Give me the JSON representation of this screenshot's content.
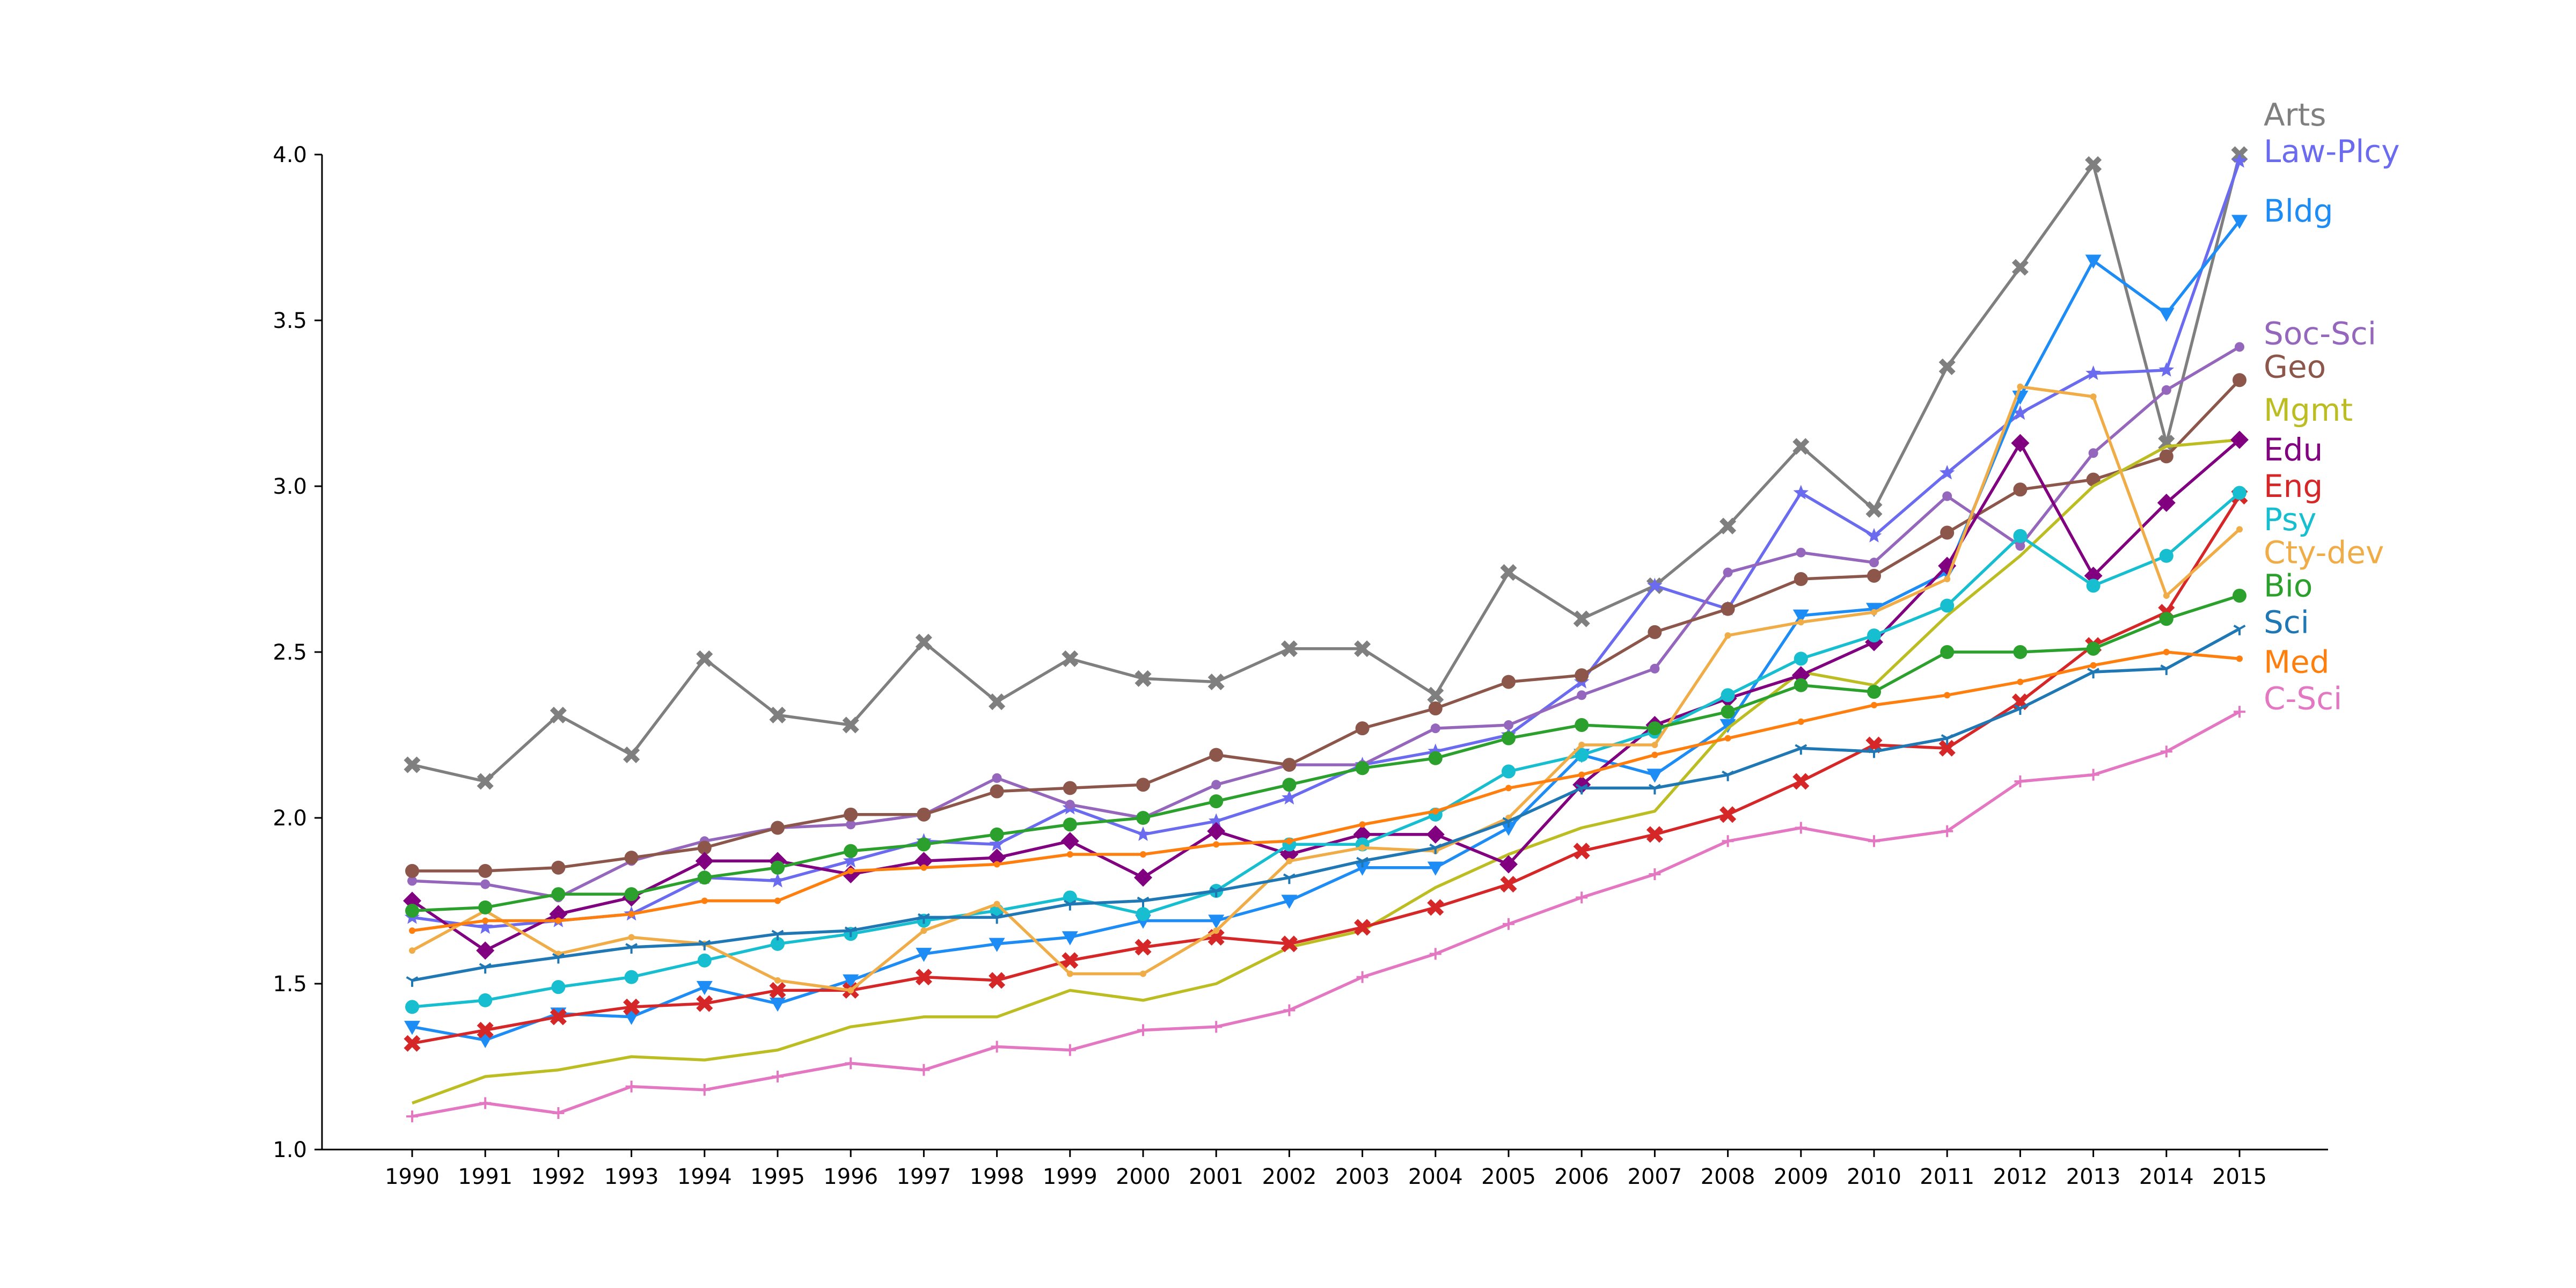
{
  "chart_data": {
    "type": "line",
    "title": "",
    "xlabel": "",
    "ylabel": "",
    "grid": false,
    "legend": "inline labels at line ends (right)",
    "ylim": [
      1.0,
      4.0
    ],
    "yticks": [
      "1.0",
      "1.5",
      "2.0",
      "2.5",
      "3.0",
      "3.5",
      "4.0"
    ],
    "x": [
      "1990",
      "1991",
      "1992",
      "1993",
      "1994",
      "1995",
      "1996",
      "1997",
      "1998",
      "1999",
      "2000",
      "2001",
      "2002",
      "2003",
      "2004",
      "2005",
      "2006",
      "2007",
      "2008",
      "2009",
      "2010",
      "2011",
      "2012",
      "2013",
      "2014",
      "2015"
    ],
    "series": [
      {
        "name": "Arts",
        "color": "#7f7f7f",
        "marker": "x",
        "values": [
          2.16,
          2.11,
          2.31,
          2.19,
          2.48,
          2.31,
          2.28,
          2.53,
          2.35,
          2.48,
          2.42,
          2.41,
          2.51,
          2.51,
          2.37,
          2.74,
          2.6,
          2.7,
          2.88,
          3.12,
          2.93,
          3.36,
          3.66,
          3.97,
          3.13,
          4.0
        ]
      },
      {
        "name": "Law-Plcy",
        "color": "#6b6bf0",
        "marker": "star",
        "values": [
          1.7,
          1.67,
          1.69,
          1.71,
          1.82,
          1.81,
          1.87,
          1.93,
          1.92,
          2.03,
          1.95,
          1.99,
          2.06,
          2.16,
          2.2,
          2.25,
          2.41,
          2.7,
          2.63,
          2.98,
          2.85,
          3.04,
          3.22,
          3.34,
          3.35,
          3.98
        ]
      },
      {
        "name": "Bldg",
        "color": "#1e8cf5",
        "marker": "triangle-down",
        "values": [
          1.37,
          1.33,
          1.41,
          1.4,
          1.49,
          1.44,
          1.51,
          1.59,
          1.62,
          1.64,
          1.69,
          1.69,
          1.75,
          1.85,
          1.85,
          1.97,
          2.19,
          2.13,
          2.28,
          2.61,
          2.63,
          2.74,
          3.27,
          3.68,
          3.52,
          3.8
        ]
      },
      {
        "name": "Soc-Sci",
        "color": "#9467bd",
        "marker": "dot",
        "values": [
          1.81,
          1.8,
          1.76,
          1.87,
          1.93,
          1.97,
          1.98,
          2.01,
          2.12,
          2.04,
          2.0,
          2.1,
          2.16,
          2.16,
          2.27,
          2.28,
          2.37,
          2.45,
          2.74,
          2.8,
          2.77,
          2.97,
          2.82,
          3.1,
          3.29,
          3.42
        ]
      },
      {
        "name": "Geo",
        "color": "#8c564b",
        "marker": "circle",
        "values": [
          1.84,
          1.84,
          1.85,
          1.88,
          1.91,
          1.97,
          2.01,
          2.01,
          2.08,
          2.09,
          2.1,
          2.19,
          2.16,
          2.27,
          2.33,
          2.41,
          2.43,
          2.56,
          2.63,
          2.72,
          2.73,
          2.86,
          2.99,
          3.02,
          3.09,
          3.32
        ]
      },
      {
        "name": "Mgmt",
        "color": "#bcbd22",
        "marker": "none",
        "values": [
          1.14,
          1.22,
          1.24,
          1.28,
          1.27,
          1.3,
          1.37,
          1.4,
          1.4,
          1.48,
          1.45,
          1.5,
          1.61,
          1.66,
          1.79,
          1.89,
          1.97,
          2.02,
          2.27,
          2.44,
          2.4,
          2.61,
          2.79,
          3.0,
          3.12,
          3.14
        ]
      },
      {
        "name": "Edu",
        "color": "#800080",
        "marker": "diamond",
        "values": [
          1.75,
          1.6,
          1.71,
          1.76,
          1.87,
          1.87,
          1.83,
          1.87,
          1.88,
          1.93,
          1.82,
          1.96,
          1.89,
          1.95,
          1.95,
          1.86,
          2.1,
          2.28,
          2.36,
          2.43,
          2.53,
          2.76,
          3.13,
          2.73,
          2.95,
          3.14
        ]
      },
      {
        "name": "Eng",
        "color": "#d62728",
        "marker": "x",
        "values": [
          1.32,
          1.36,
          1.4,
          1.43,
          1.44,
          1.48,
          1.48,
          1.52,
          1.51,
          1.57,
          1.61,
          1.64,
          1.62,
          1.67,
          1.73,
          1.8,
          1.9,
          1.95,
          2.01,
          2.11,
          2.22,
          2.21,
          2.35,
          2.52,
          2.62,
          2.97
        ]
      },
      {
        "name": "Psy",
        "color": "#17becf",
        "marker": "circle",
        "values": [
          1.43,
          1.45,
          1.49,
          1.52,
          1.57,
          1.62,
          1.65,
          1.69,
          1.72,
          1.76,
          1.71,
          1.78,
          1.92,
          1.92,
          2.01,
          2.14,
          2.19,
          2.26,
          2.37,
          2.48,
          2.55,
          2.64,
          2.85,
          2.7,
          2.79,
          2.98
        ]
      },
      {
        "name": "Cty-dev",
        "color": "#f0ac46",
        "marker": "small-dot",
        "values": [
          1.6,
          1.72,
          1.59,
          1.64,
          1.62,
          1.51,
          1.48,
          1.66,
          1.74,
          1.53,
          1.53,
          1.66,
          1.87,
          1.91,
          1.9,
          2.0,
          2.22,
          2.22,
          2.55,
          2.59,
          2.62,
          2.72,
          3.3,
          3.27,
          2.67,
          2.87
        ]
      },
      {
        "name": "Bio",
        "color": "#2ca02c",
        "marker": "circle",
        "values": [
          1.72,
          1.73,
          1.77,
          1.77,
          1.82,
          1.85,
          1.9,
          1.92,
          1.95,
          1.98,
          2.0,
          2.05,
          2.1,
          2.15,
          2.18,
          2.24,
          2.28,
          2.27,
          2.32,
          2.4,
          2.38,
          2.5,
          2.5,
          2.51,
          2.6,
          2.67
        ]
      },
      {
        "name": "Sci",
        "color": "#1f77b4",
        "marker": "tri",
        "values": [
          1.51,
          1.55,
          1.58,
          1.61,
          1.62,
          1.65,
          1.66,
          1.7,
          1.7,
          1.74,
          1.75,
          1.78,
          1.82,
          1.87,
          1.91,
          1.99,
          2.09,
          2.09,
          2.13,
          2.21,
          2.2,
          2.24,
          2.33,
          2.44,
          2.45,
          2.57
        ]
      },
      {
        "name": "Med",
        "color": "#ff7f0e",
        "marker": "small-dot",
        "values": [
          1.66,
          1.69,
          1.69,
          1.71,
          1.75,
          1.75,
          1.84,
          1.85,
          1.86,
          1.89,
          1.89,
          1.92,
          1.93,
          1.98,
          2.02,
          2.09,
          2.13,
          2.19,
          2.24,
          2.29,
          2.34,
          2.37,
          2.41,
          2.46,
          2.5,
          2.48
        ]
      },
      {
        "name": "C-Sci",
        "color": "#e377c2",
        "marker": "plus",
        "values": [
          1.1,
          1.14,
          1.11,
          1.19,
          1.18,
          1.22,
          1.26,
          1.24,
          1.31,
          1.3,
          1.36,
          1.37,
          1.42,
          1.52,
          1.59,
          1.68,
          1.76,
          1.83,
          1.93,
          1.97,
          1.93,
          1.96,
          2.11,
          2.13,
          2.2,
          2.32
        ]
      }
    ],
    "series_labels": [
      {
        "name": "Arts",
        "y": 4.12
      },
      {
        "name": "Law-Plcy",
        "y": 4.01
      },
      {
        "name": "Bldg",
        "y": 3.83
      },
      {
        "name": "Soc-Sci",
        "y": 3.46
      },
      {
        "name": "Geo",
        "y": 3.36
      },
      {
        "name": "Mgmt",
        "y": 3.23
      },
      {
        "name": "Edu",
        "y": 3.11
      },
      {
        "name": "Eng",
        "y": 3.0
      },
      {
        "name": "Psy",
        "y": 2.9
      },
      {
        "name": "Cty-dev",
        "y": 2.8
      },
      {
        "name": "Bio",
        "y": 2.7
      },
      {
        "name": "Sci",
        "y": 2.59
      },
      {
        "name": "Med",
        "y": 2.47
      },
      {
        "name": "C-Sci",
        "y": 2.36
      }
    ]
  }
}
